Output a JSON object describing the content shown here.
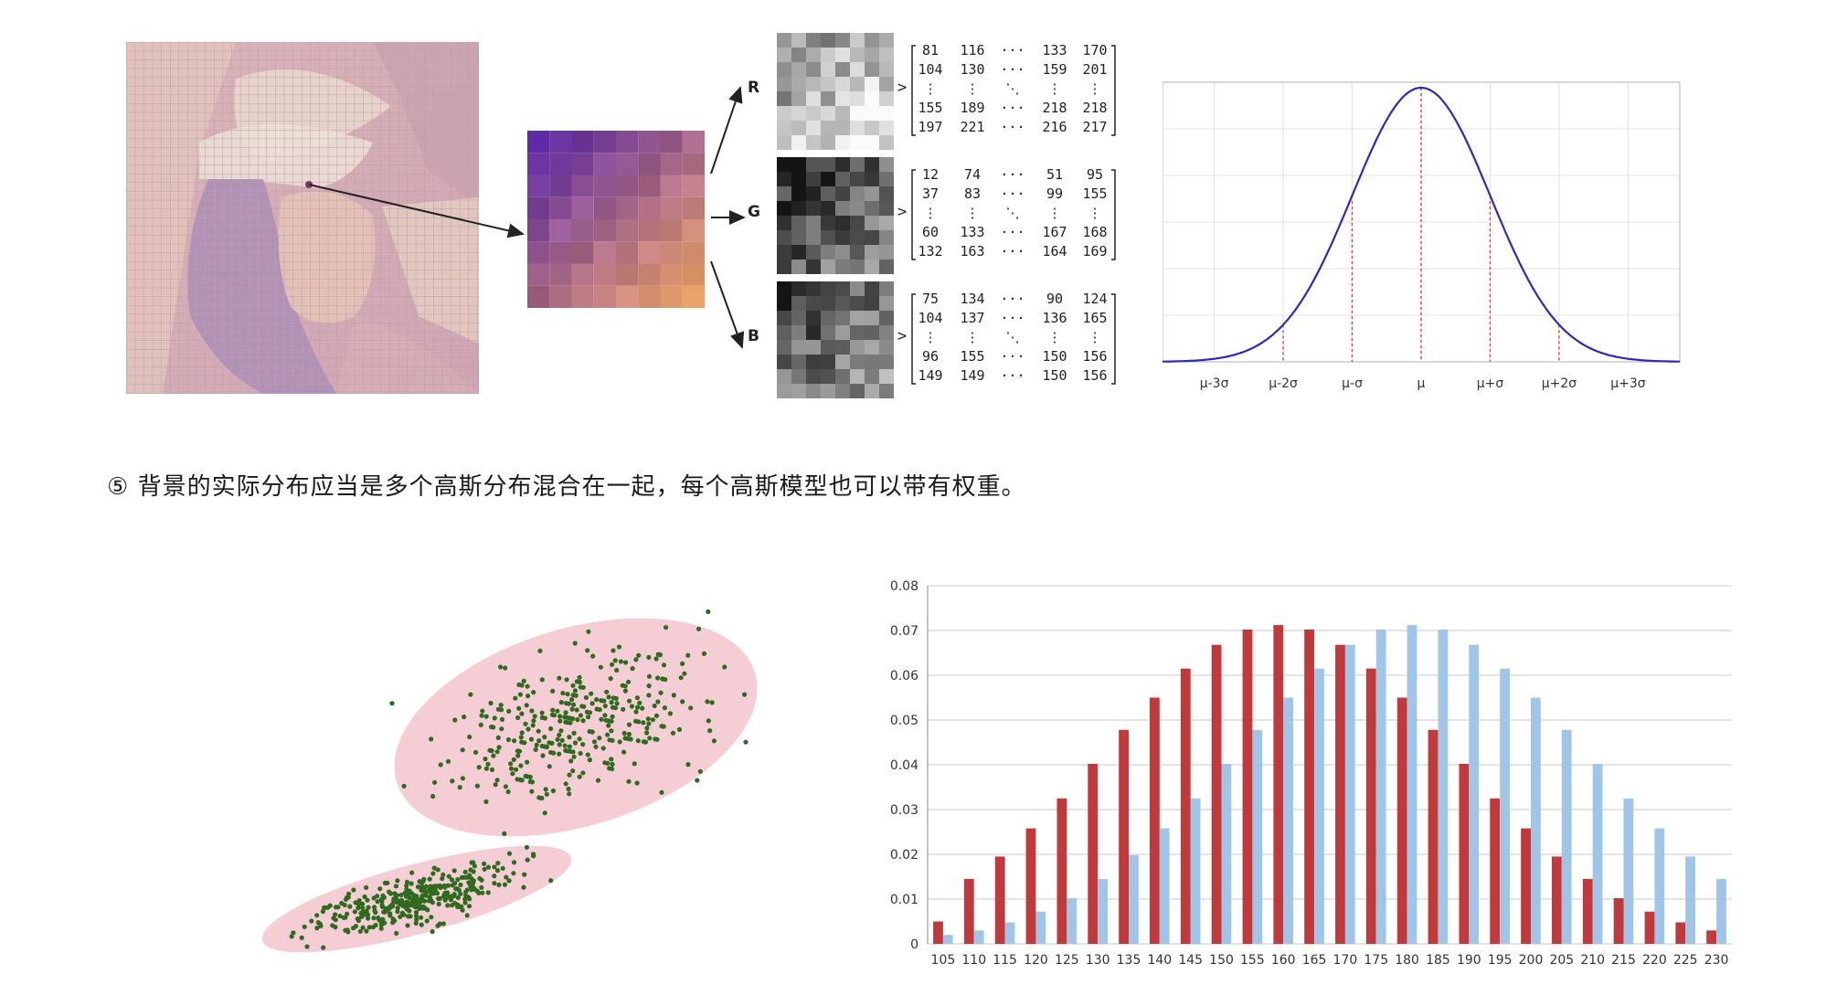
{
  "caption": "⑤ 背景的实际分布应当是多个高斯分布混合在一起，每个高斯模型也可以带有权重。",
  "rgb_figure": {
    "channels": [
      {
        "label": "R",
        "matrix": [
          [
            "81",
            "116",
            "···",
            "133",
            "170"
          ],
          [
            "104",
            "130",
            "···",
            "159",
            "201"
          ],
          [
            "⋮",
            "⋮",
            "⋱",
            "⋮",
            "⋮"
          ],
          [
            "155",
            "189",
            "···",
            "218",
            "218"
          ],
          [
            "197",
            "221",
            "···",
            "216",
            "217"
          ]
        ]
      },
      {
        "label": "G",
        "matrix": [
          [
            "12",
            "74",
            "···",
            "51",
            "95"
          ],
          [
            "37",
            "83",
            "···",
            "99",
            "155"
          ],
          [
            "⋮",
            "⋮",
            "⋱",
            "⋮",
            "⋮"
          ],
          [
            "60",
            "133",
            "···",
            "167",
            "168"
          ],
          [
            "132",
            "163",
            "···",
            "164",
            "169"
          ]
        ]
      },
      {
        "label": "B",
        "matrix": [
          [
            "75",
            "134",
            "···",
            "90",
            "124"
          ],
          [
            "104",
            "137",
            "···",
            "136",
            "165"
          ],
          [
            "⋮",
            "⋮",
            "⋱",
            "⋮",
            "⋮"
          ],
          [
            "96",
            "155",
            "···",
            "150",
            "156"
          ],
          [
            "149",
            "149",
            "···",
            "150",
            "156"
          ]
        ]
      }
    ],
    "arrow_glyph": ">"
  },
  "chart_data": [
    {
      "type": "line",
      "title": "",
      "xlabel": "",
      "ylabel": "",
      "x_ticks": [
        "μ-3σ",
        "μ-2σ",
        "μ-σ",
        "μ",
        "μ+σ",
        "μ+2σ",
        "μ+3σ"
      ],
      "x_tick_values": [
        -3,
        -2,
        -1,
        0,
        1,
        2,
        3
      ],
      "xlim": [
        -3.75,
        3.75
      ],
      "series": [
        {
          "function": "standard normal density",
          "color": "#2b2bb8"
        }
      ],
      "reference_lines": [
        -2,
        -1,
        0,
        1,
        2
      ],
      "reference_color": "#d94040",
      "grid": true
    },
    {
      "type": "scatter",
      "title": "",
      "clusters": [
        {
          "center": [
            0.5,
            0.4
          ],
          "ellipse": true,
          "count": 330
        },
        {
          "center": [
            -0.9,
            -1.05
          ],
          "ellipse": true,
          "count": 320
        }
      ],
      "point_color": "#2e6b1e",
      "ellipse_color": "#f2c6cc"
    },
    {
      "type": "bar",
      "title": "",
      "xlabel": "",
      "ylabel": "",
      "categories": [
        "105",
        "110",
        "115",
        "120",
        "125",
        "130",
        "135",
        "140",
        "145",
        "150",
        "155",
        "160",
        "165",
        "170",
        "175",
        "180",
        "185",
        "190",
        "195",
        "200",
        "205",
        "210",
        "215",
        "220",
        "225",
        "230"
      ],
      "ylim": [
        0,
        0.08
      ],
      "y_ticks": [
        "0",
        "0.01",
        "0.02",
        "0.03",
        "0.04",
        "0.05",
        "0.06",
        "0.07",
        "0.08"
      ],
      "series": [
        {
          "color": "#c0393b",
          "values": [
            0.005,
            0.0145,
            0.0195,
            0.0258,
            0.0325,
            0.0402,
            0.0478,
            0.055,
            0.0615,
            0.0668,
            0.0702,
            0.0712,
            0.0702,
            0.0668,
            0.0615,
            0.055,
            0.0478,
            0.0402,
            0.0325,
            0.0258,
            0.0195,
            0.0145,
            0.0102,
            0.0072,
            0.0048,
            0.003
          ]
        },
        {
          "color": "#9fc6e8",
          "values": [
            0.002,
            0.003,
            0.0048,
            0.0072,
            0.0102,
            0.0145,
            0.0198,
            0.0258,
            0.0325,
            0.0402,
            0.0478,
            0.055,
            0.0615,
            0.0668,
            0.0702,
            0.0712,
            0.0702,
            0.0668,
            0.0615,
            0.055,
            0.0478,
            0.0402,
            0.0325,
            0.0258,
            0.0195,
            0.0145
          ]
        }
      ],
      "grid": true
    }
  ]
}
